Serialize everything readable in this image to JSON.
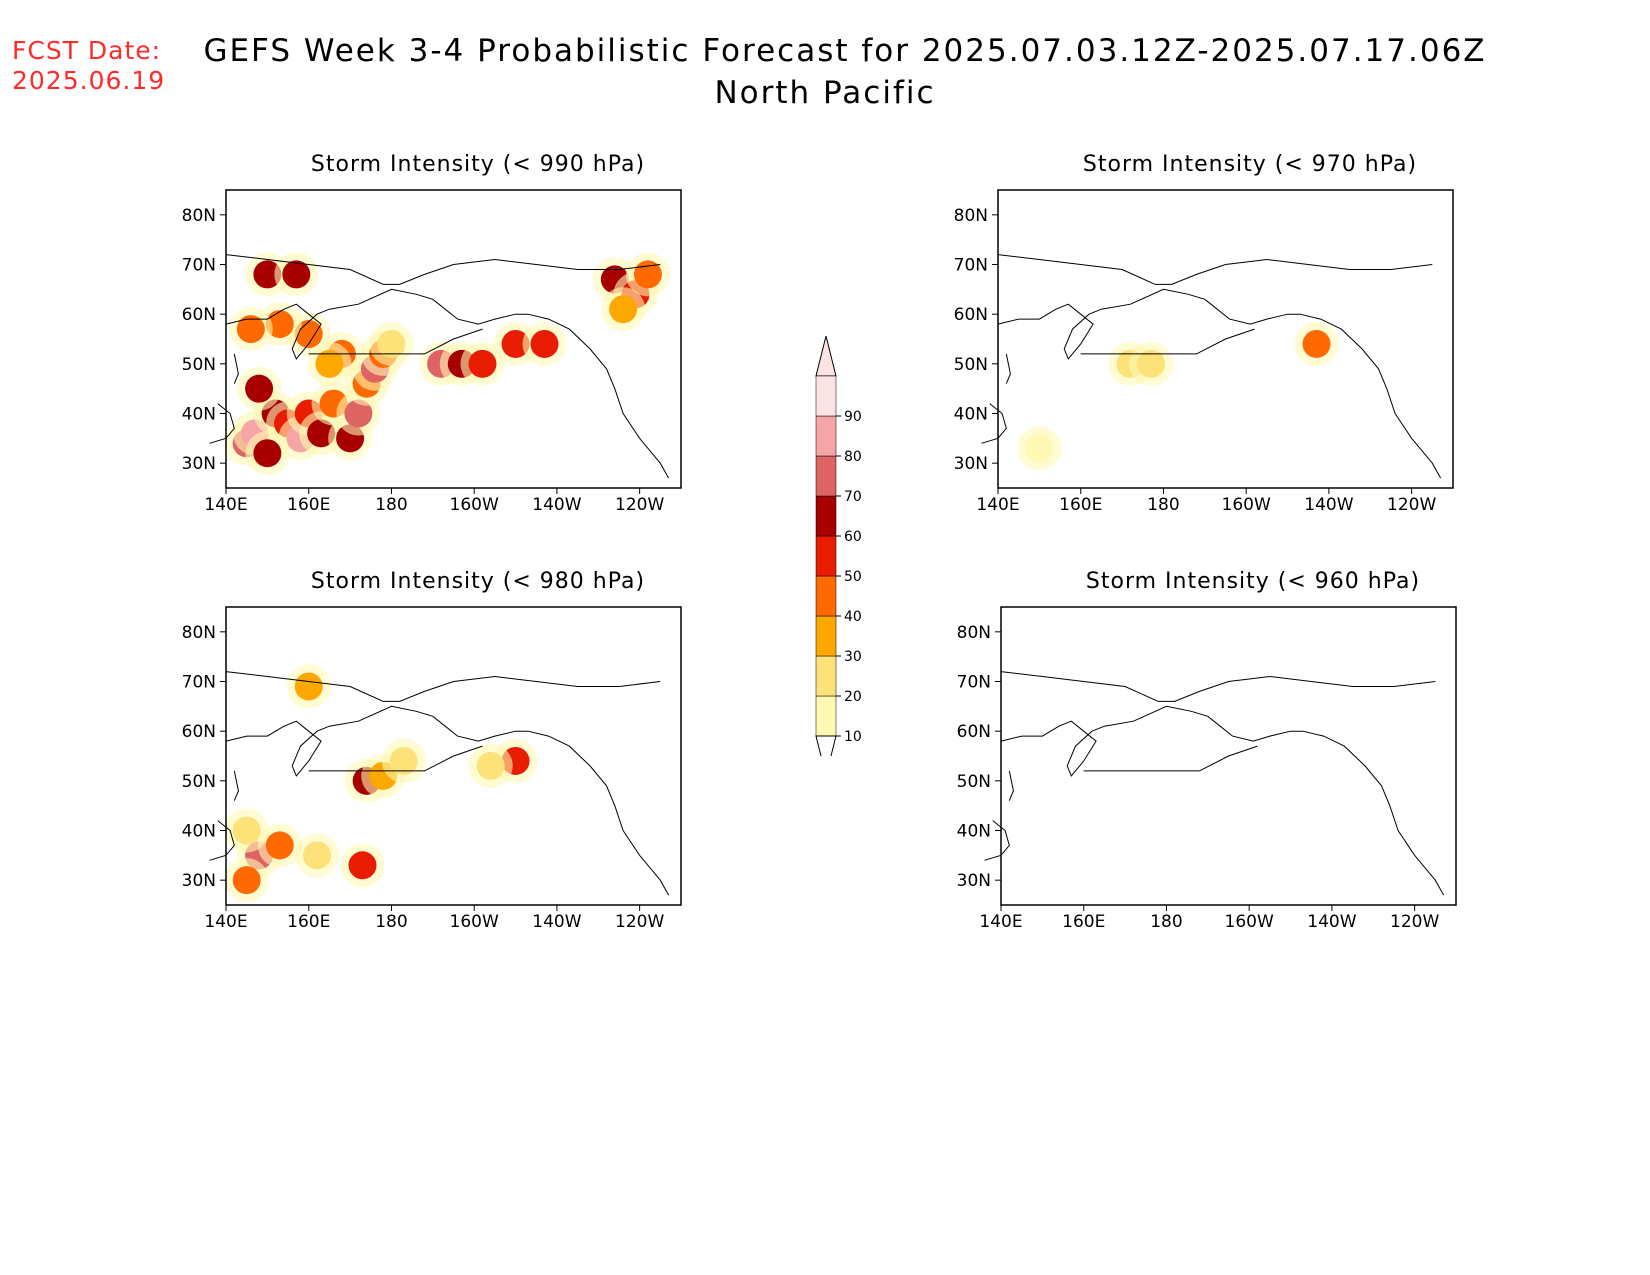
{
  "fcst_date": {
    "label": "FCST Date:",
    "value": "2025.06.19"
  },
  "title": {
    "line1": "GEFS Week 3-4 Probabilistic Forecast for 2025.07.03.12Z-2025.07.17.06Z",
    "line2": "North Pacific"
  },
  "axes": {
    "lat_labels": [
      "80N",
      "70N",
      "60N",
      "50N",
      "40N",
      "30N"
    ],
    "lon_labels": [
      "140E",
      "160E",
      "180",
      "160W",
      "140W",
      "120W"
    ]
  },
  "panels": [
    {
      "id": "p990",
      "title": "Storm Intensity (< 990 hPa)"
    },
    {
      "id": "p970",
      "title": "Storm Intensity (< 970 hPa)"
    },
    {
      "id": "p980",
      "title": "Storm Intensity (< 980 hPa)"
    },
    {
      "id": "p960",
      "title": "Storm Intensity (< 960 hPa)"
    }
  ],
  "colorbar": {
    "levels": [
      "10",
      "20",
      "30",
      "40",
      "50",
      "60",
      "70",
      "80",
      "90"
    ],
    "colors": [
      "#fff9b4",
      "#fde27a",
      "#fca800",
      "#ff6a00",
      "#e81c00",
      "#a80000",
      "#de6464",
      "#f5a5a5",
      "#fde4e4"
    ]
  },
  "chart_data": {
    "type": "heatmap",
    "units": "percent probability",
    "extent": {
      "lon": [
        140,
        250
      ],
      "lat": [
        25,
        85
      ]
    },
    "panels": {
      "p990": [
        [
          145,
          34,
          70
        ],
        [
          147,
          36,
          80
        ],
        [
          150,
          32,
          60
        ],
        [
          152,
          40,
          60
        ],
        [
          148,
          45,
          60
        ],
        [
          155,
          38,
          50
        ],
        [
          158,
          35,
          80
        ],
        [
          160,
          40,
          50
        ],
        [
          163,
          36,
          60
        ],
        [
          166,
          42,
          40
        ],
        [
          170,
          35,
          60
        ],
        [
          172,
          40,
          70
        ],
        [
          174,
          46,
          40
        ],
        [
          176,
          49,
          70
        ],
        [
          178,
          52,
          40
        ],
        [
          168,
          52,
          40
        ],
        [
          160,
          56,
          40
        ],
        [
          153,
          58,
          40
        ],
        [
          146,
          57,
          40
        ],
        [
          150,
          68,
          60
        ],
        [
          157,
          68,
          60
        ],
        [
          165,
          50,
          30
        ],
        [
          180,
          54,
          20
        ],
        [
          192,
          50,
          70
        ],
        [
          197,
          50,
          60
        ],
        [
          202,
          50,
          50
        ],
        [
          210,
          54,
          50
        ],
        [
          217,
          54,
          50
        ],
        [
          234,
          67,
          60
        ],
        [
          239,
          64,
          50
        ],
        [
          242,
          68,
          40
        ],
        [
          236,
          61,
          30
        ]
      ],
      "p970": [
        [
          172,
          50,
          20
        ],
        [
          177,
          50,
          20
        ],
        [
          217,
          54,
          40
        ],
        [
          150,
          33,
          10
        ]
      ],
      "p980": [
        [
          148,
          35,
          70
        ],
        [
          145,
          30,
          40
        ],
        [
          153,
          37,
          40
        ],
        [
          162,
          35,
          20
        ],
        [
          174,
          50,
          60
        ],
        [
          178,
          51,
          30
        ],
        [
          183,
          54,
          20
        ],
        [
          210,
          54,
          50
        ],
        [
          204,
          53,
          20
        ],
        [
          160,
          69,
          30
        ],
        [
          145,
          40,
          20
        ],
        [
          173,
          33,
          50
        ]
      ],
      "p960": []
    }
  }
}
